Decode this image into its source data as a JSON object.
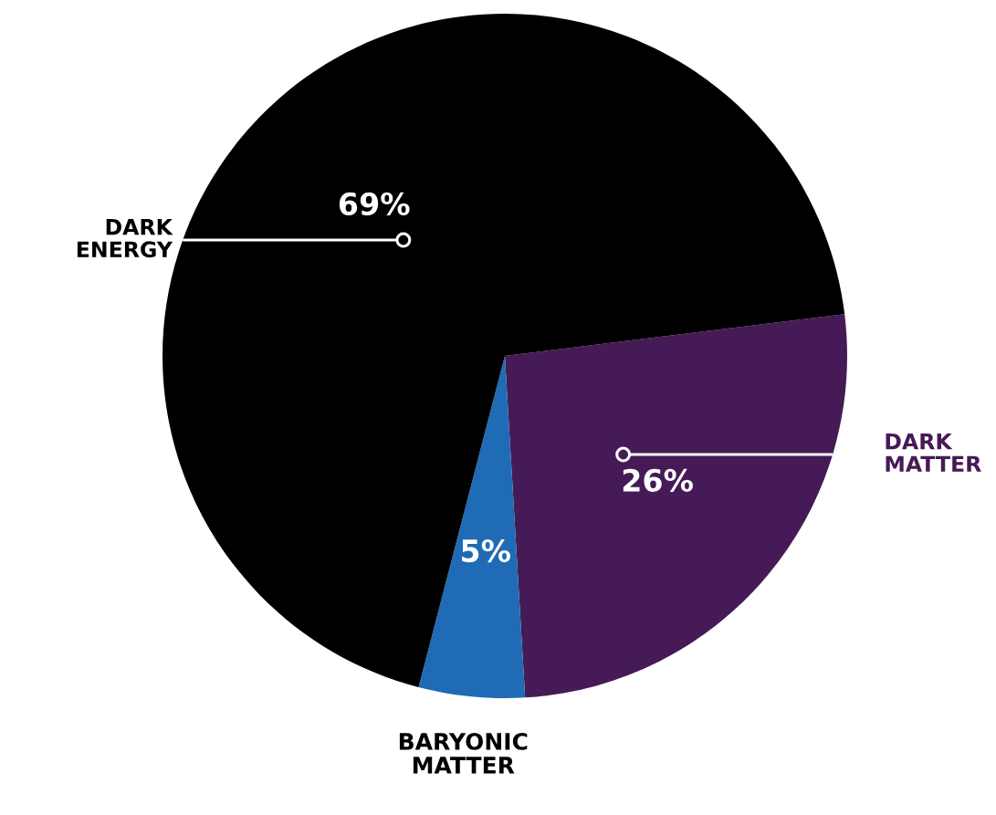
{
  "chart_data": {
    "type": "pie",
    "categories": [
      "DARK\nMATTER",
      "BARYONIC\nMATTER",
      "DARK\nENERGY"
    ],
    "values": [
      26,
      5,
      69
    ],
    "value_labels": [
      "26%",
      "5%",
      "69%"
    ],
    "colors": [
      "#461a56",
      "#1f6bb5",
      "#000000"
    ]
  }
}
